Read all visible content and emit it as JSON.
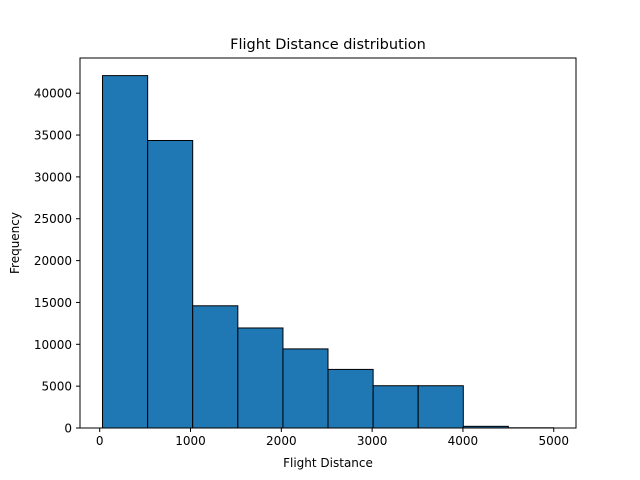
{
  "chart_data": {
    "type": "bar",
    "title": "Flight Distance distribution",
    "xlabel": "Flight Distance",
    "ylabel": "Frequency",
    "bins": [
      {
        "start": 31,
        "end": 528,
        "value": 42100
      },
      {
        "start": 528,
        "end": 1024,
        "value": 34350
      },
      {
        "start": 1024,
        "end": 1521,
        "value": 14600
      },
      {
        "start": 1521,
        "end": 2018,
        "value": 11950
      },
      {
        "start": 2018,
        "end": 2514,
        "value": 9450
      },
      {
        "start": 2514,
        "end": 3011,
        "value": 7000
      },
      {
        "start": 3011,
        "end": 3507,
        "value": 5050
      },
      {
        "start": 3507,
        "end": 4004,
        "value": 5050
      },
      {
        "start": 4004,
        "end": 4500,
        "value": 200
      },
      {
        "start": 4500,
        "end": 4997,
        "value": 25
      }
    ],
    "xlim": [
      -217,
      5245
    ],
    "ylim": [
      0,
      44205
    ],
    "xticks": [
      0,
      1000,
      2000,
      3000,
      4000,
      5000
    ],
    "xtick_labels": [
      "0",
      "1000",
      "2000",
      "3000",
      "4000",
      "5000"
    ],
    "yticks": [
      0,
      5000,
      10000,
      15000,
      20000,
      25000,
      30000,
      35000,
      40000
    ],
    "ytick_labels": [
      "0",
      "5000",
      "10000",
      "15000",
      "20000",
      "25000",
      "30000",
      "35000",
      "40000"
    ],
    "bar_color": "#1f77b4",
    "edge_color": "#000000",
    "grid": false,
    "legend": "none"
  }
}
